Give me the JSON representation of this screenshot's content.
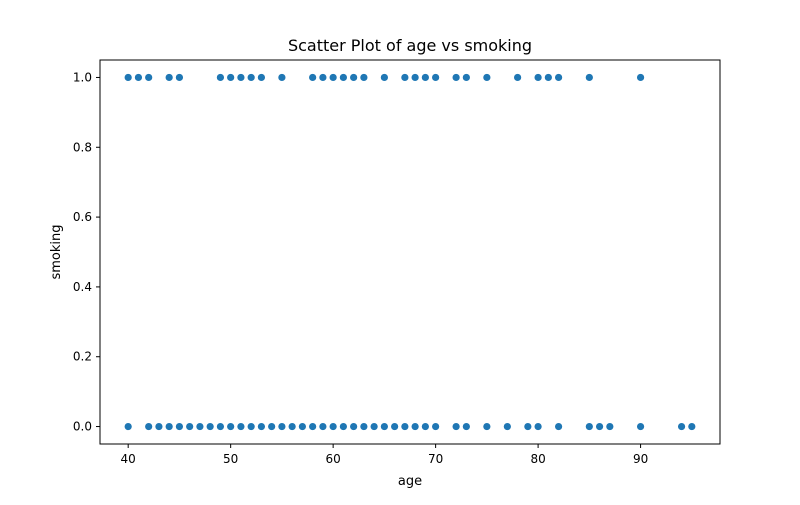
{
  "chart_data": {
    "type": "scatter",
    "title": "Scatter Plot of age vs smoking",
    "xlabel": "age",
    "ylabel": "smoking",
    "xlim": [
      37.25,
      97.75
    ],
    "ylim": [
      -0.05,
      1.05
    ],
    "xticks": [
      40,
      50,
      60,
      70,
      80,
      90
    ],
    "yticks": [
      0.0,
      0.2,
      0.4,
      0.6,
      0.8,
      1.0
    ],
    "xtick_labels": [
      "40",
      "50",
      "60",
      "70",
      "80",
      "90"
    ],
    "ytick_labels": [
      "0.0",
      "0.2",
      "0.4",
      "0.6",
      "0.8",
      "1.0"
    ],
    "grid": false,
    "marker_color": "#1f77b4",
    "series": [
      {
        "x": [
          40,
          41,
          42,
          44,
          45,
          49,
          50,
          51,
          52,
          53,
          55,
          58,
          59,
          60,
          61,
          62,
          63,
          65,
          67,
          68,
          69,
          70,
          72,
          73,
          75,
          78,
          80,
          81,
          82,
          85,
          90
        ],
        "y": [
          1,
          1,
          1,
          1,
          1,
          1,
          1,
          1,
          1,
          1,
          1,
          1,
          1,
          1,
          1,
          1,
          1,
          1,
          1,
          1,
          1,
          1,
          1,
          1,
          1,
          1,
          1,
          1,
          1,
          1,
          1
        ]
      },
      {
        "x": [
          40,
          42,
          43,
          44,
          45,
          46,
          47,
          48,
          49,
          50,
          51,
          52,
          53,
          54,
          55,
          56,
          57,
          58,
          59,
          60,
          61,
          62,
          63,
          64,
          65,
          66,
          67,
          68,
          69,
          70,
          72,
          73,
          75,
          77,
          79,
          80,
          82,
          85,
          86,
          87,
          90,
          94,
          95
        ],
        "y": [
          0,
          0,
          0,
          0,
          0,
          0,
          0,
          0,
          0,
          0,
          0,
          0,
          0,
          0,
          0,
          0,
          0,
          0,
          0,
          0,
          0,
          0,
          0,
          0,
          0,
          0,
          0,
          0,
          0,
          0,
          0,
          0,
          0,
          0,
          0,
          0,
          0,
          0,
          0,
          0,
          0,
          0,
          0
        ]
      }
    ]
  }
}
